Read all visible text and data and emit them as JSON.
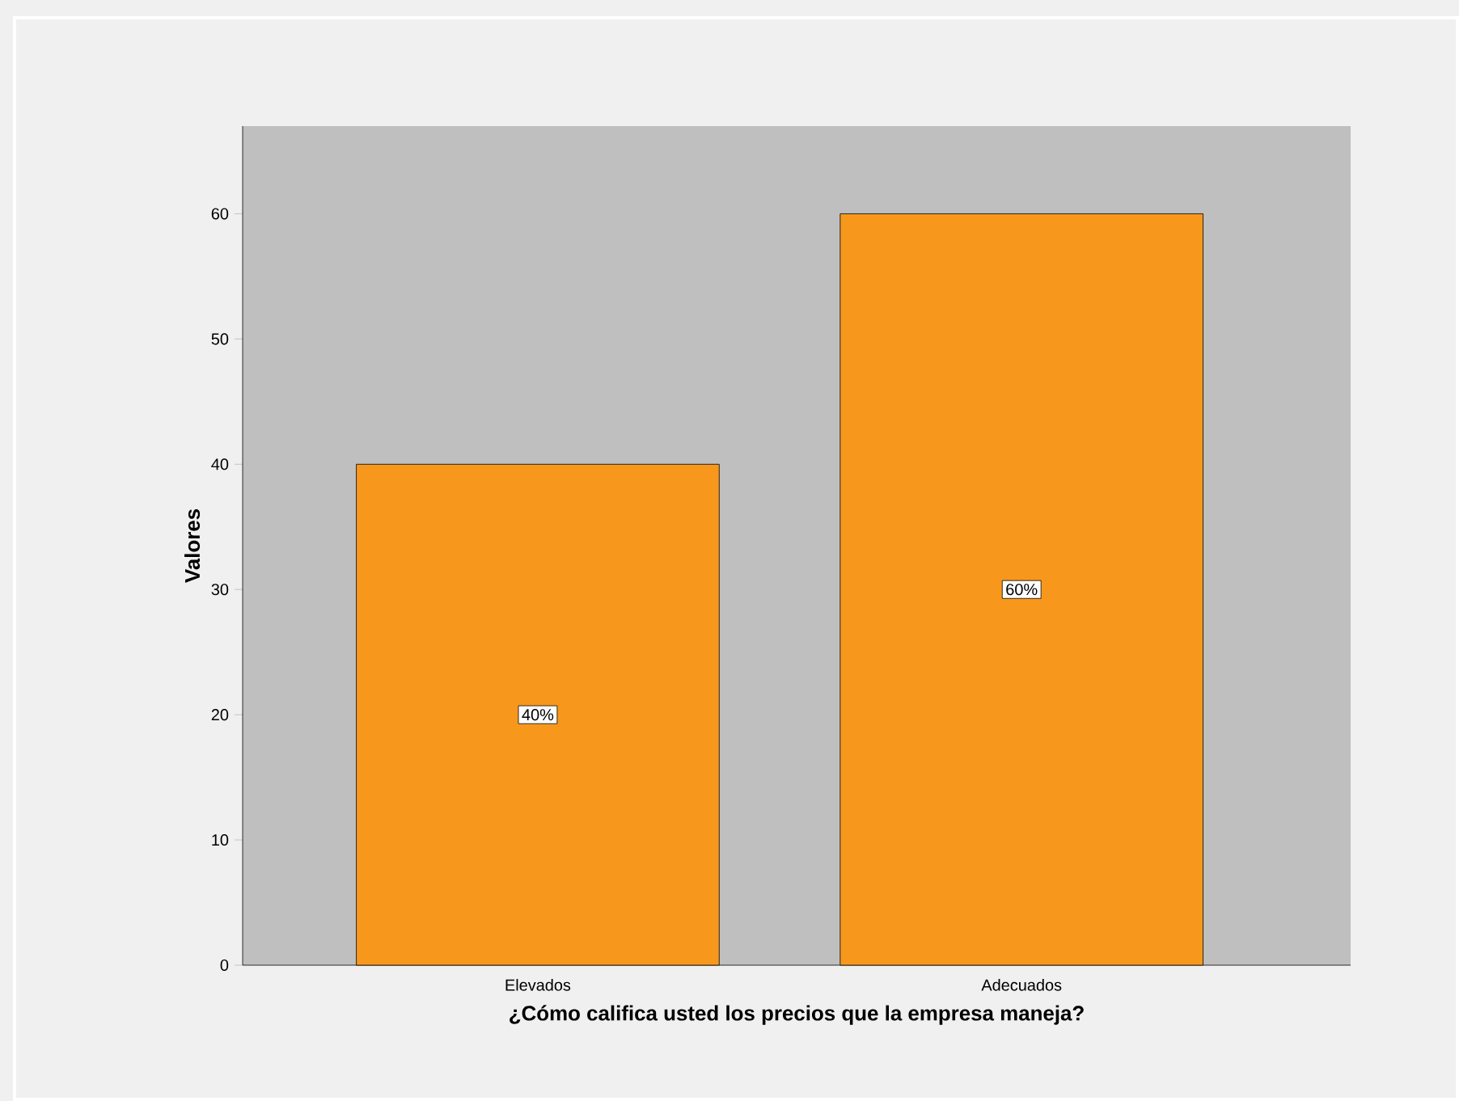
{
  "chart_data": {
    "type": "bar",
    "xlabel": "¿Cómo califica usted los precios que la empresa maneja?",
    "ylabel": "Valores",
    "categories": [
      "Elevados",
      "Adecuados"
    ],
    "values": [
      40,
      60
    ],
    "value_labels": [
      "40%",
      "60%"
    ],
    "color": "#f7981d",
    "ylim": [
      0,
      67
    ],
    "yticks": [
      0,
      10,
      20,
      30,
      40,
      50,
      60
    ]
  }
}
